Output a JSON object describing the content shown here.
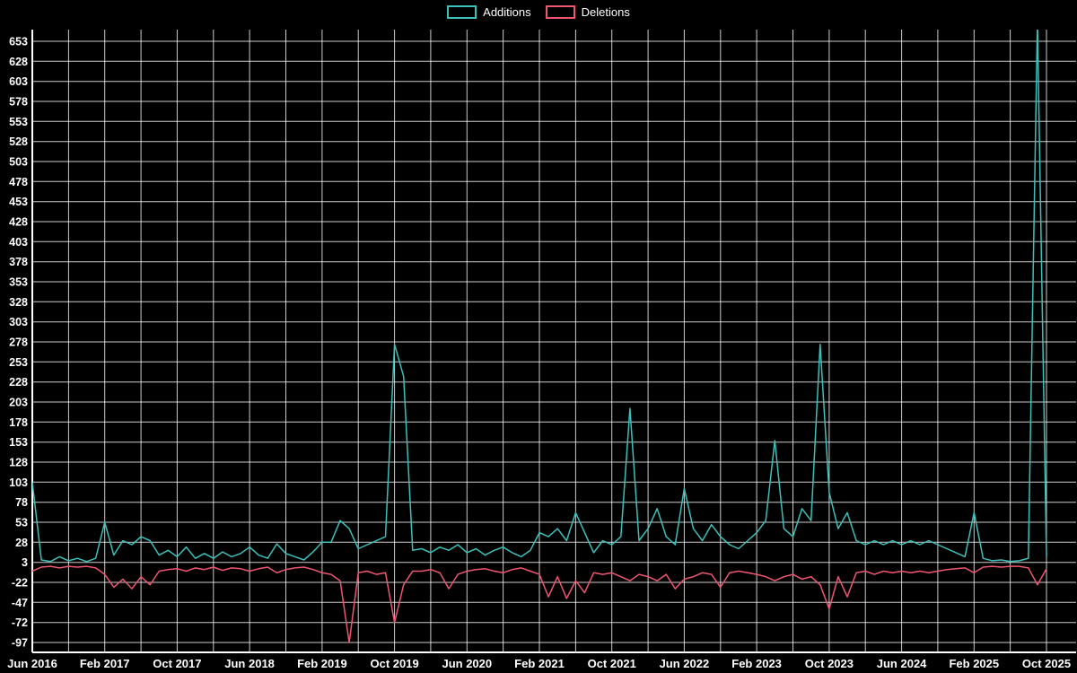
{
  "legend": {
    "additions_label": "Additions",
    "deletions_label": "Deletions"
  },
  "colors": {
    "background": "#000000",
    "grid": "#ffffff",
    "text": "#ffffff",
    "additions": "#3cc0b9",
    "deletions": "#ef5670"
  },
  "chart_data": {
    "type": "line",
    "title": "",
    "xlabel": "",
    "ylabel": "",
    "grid": true,
    "legend_position": "top-center",
    "start_month": "2016-06",
    "interval": "monthly",
    "ylim": [
      -110,
      668
    ],
    "y_ticks": [
      -97,
      -72,
      -47,
      -22,
      3,
      28,
      53,
      78,
      103,
      128,
      153,
      178,
      203,
      228,
      253,
      278,
      303,
      328,
      353,
      378,
      403,
      428,
      453,
      478,
      503,
      528,
      553,
      578,
      603,
      628,
      653
    ],
    "x_tick_labels": [
      "Jun 2016",
      "Feb 2017",
      "Oct 2017",
      "Jun 2018",
      "Feb 2019",
      "Oct 2019",
      "Jun 2020",
      "Feb 2021",
      "Oct 2021",
      "Jun 2022",
      "Feb 2023",
      "Oct 2023",
      "Jun 2024",
      "Feb 2025",
      "Oct 2025"
    ],
    "series": [
      {
        "name": "Additions",
        "color": "#3cc0b9",
        "values": [
          103,
          6,
          4,
          10,
          5,
          8,
          4,
          8,
          53,
          12,
          30,
          25,
          35,
          30,
          12,
          18,
          10,
          22,
          8,
          14,
          8,
          16,
          10,
          14,
          22,
          12,
          8,
          26,
          14,
          10,
          6,
          16,
          28,
          28,
          55,
          45,
          20,
          25,
          30,
          35,
          275,
          235,
          18,
          20,
          15,
          22,
          18,
          25,
          15,
          20,
          12,
          18,
          22,
          15,
          10,
          18,
          40,
          35,
          45,
          30,
          65,
          40,
          15,
          30,
          25,
          35,
          195,
          30,
          45,
          70,
          35,
          25,
          95,
          45,
          30,
          50,
          35,
          25,
          20,
          30,
          40,
          55,
          155,
          45,
          35,
          70,
          55,
          275,
          90,
          45,
          65,
          30,
          25,
          30,
          25,
          30,
          25,
          30,
          25,
          30,
          25,
          20,
          15,
          10,
          65,
          8,
          5,
          6,
          4,
          5,
          8,
          678,
          10
        ]
      },
      {
        "name": "Deletions",
        "color": "#ef5670",
        "values": [
          -8,
          -3,
          -2,
          -4,
          -2,
          -3,
          -2,
          -4,
          -12,
          -28,
          -18,
          -30,
          -15,
          -25,
          -8,
          -6,
          -5,
          -8,
          -4,
          -6,
          -3,
          -7,
          -4,
          -5,
          -8,
          -5,
          -3,
          -10,
          -6,
          -4,
          -3,
          -6,
          -10,
          -12,
          -20,
          -97,
          -10,
          -8,
          -12,
          -10,
          -72,
          -25,
          -8,
          -8,
          -6,
          -10,
          -30,
          -12,
          -8,
          -6,
          -5,
          -8,
          -10,
          -6,
          -4,
          -8,
          -12,
          -40,
          -15,
          -42,
          -20,
          -35,
          -10,
          -12,
          -10,
          -15,
          -20,
          -12,
          -15,
          -20,
          -12,
          -30,
          -18,
          -15,
          -10,
          -12,
          -28,
          -10,
          -8,
          -10,
          -12,
          -15,
          -20,
          -15,
          -12,
          -18,
          -15,
          -25,
          -55,
          -15,
          -40,
          -10,
          -8,
          -12,
          -8,
          -10,
          -8,
          -10,
          -8,
          -10,
          -8,
          -6,
          -5,
          -4,
          -10,
          -3,
          -2,
          -3,
          -2,
          -2,
          -4,
          -25,
          -5
        ]
      }
    ]
  }
}
